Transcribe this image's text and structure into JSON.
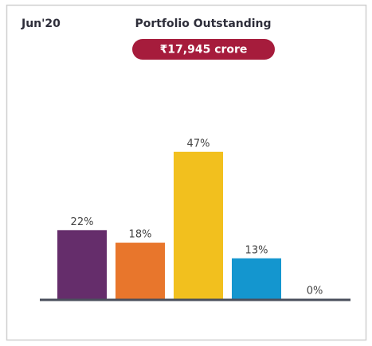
{
  "chart_data": {
    "type": "bar",
    "period": "Jun'20",
    "title": "Portfolio Outstanding",
    "total": "₹17,945 crore",
    "categories": [
      null,
      null,
      null,
      null,
      null
    ],
    "values": [
      22,
      18,
      47,
      13,
      0
    ],
    "value_labels": [
      "22%",
      "18%",
      "47%",
      "13%",
      "0%"
    ],
    "colors": [
      "#652d6b",
      "#e8762c",
      "#f2c01e",
      "#1496cf",
      "#5a5f6b"
    ]
  }
}
